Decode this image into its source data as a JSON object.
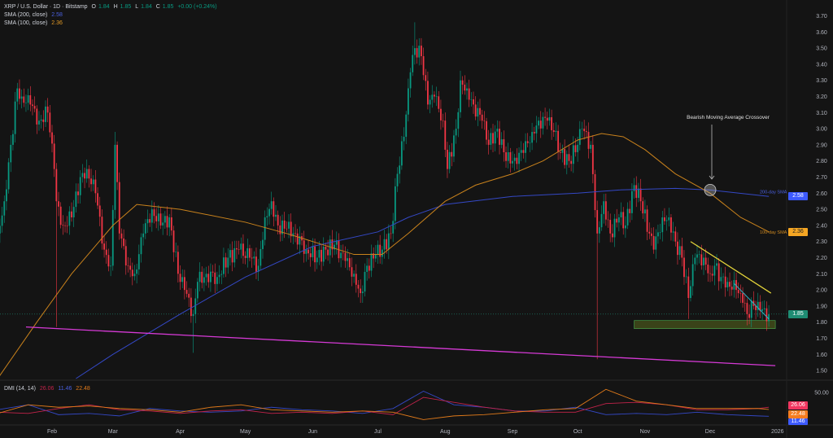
{
  "header": {
    "symbol": "XRP / U.S. Dollar · 1D · Bitstamp",
    "o_label": "O",
    "o": "1.84",
    "h_label": "H",
    "h": "1.85",
    "l_label": "L",
    "l": "1.84",
    "c_label": "C",
    "c": "1.85",
    "change": "+0.00 (+0.24%)",
    "sma200_label": "SMA (200, close)",
    "sma200_value": "2.58",
    "sma100_label": "SMA (100, close)",
    "sma100_value": "2.36"
  },
  "dmi_legend": {
    "label": "DMI (14, 14)",
    "minus_di": "26.06",
    "plus_di": "11.46",
    "adx": "22.48"
  },
  "price_tags": {
    "sma200": "2.58",
    "sma100": "2.36",
    "last": "1.85"
  },
  "dmi_tags": {
    "minus_di": "26.06",
    "adx": "22.48",
    "plus_di": "11.46"
  },
  "colors": {
    "up": "#089981",
    "down": "#f23645",
    "sma200": "#3448c5",
    "sma100": "#c9821c",
    "support_line": "#d63ad6",
    "upper_trend": "#e5d53a",
    "lower_trend": "#31b6c9",
    "support_zone": "#5a6a1e",
    "plus_di": "#3448c5",
    "minus_di": "#c2234a",
    "adx": "#e07a1a"
  },
  "chart_data": [
    {
      "type": "candlestick",
      "title": "XRP / U.S. Dollar · 1D · Bitstamp",
      "y_scale": "linear",
      "ylim": [
        1.45,
        3.72
      ],
      "y_ticks": [
        "3.70",
        "3.60",
        "3.50",
        "3.40",
        "3.30",
        "3.20",
        "3.10",
        "3.00",
        "2.90",
        "2.80",
        "2.70",
        "2.60",
        "2.50",
        "2.40",
        "2.30",
        "2.20",
        "2.10",
        "2.00",
        "1.90",
        "1.80",
        "1.70",
        "1.60",
        "1.50"
      ],
      "x_ticks": [
        [
          "2025-02-01",
          "Feb"
        ],
        [
          "2025-03-01",
          "Mar"
        ],
        [
          "2025-04-01",
          "Apr"
        ],
        [
          "2025-05-01",
          "May"
        ],
        [
          "2025-06-01",
          "Jun"
        ],
        [
          "2025-07-01",
          "Jul"
        ],
        [
          "2025-08-01",
          "Aug"
        ],
        [
          "2025-09-01",
          "Sep"
        ],
        [
          "2025-10-01",
          "Oct"
        ],
        [
          "2025-11-01",
          "Nov"
        ],
        [
          "2025-12-01",
          "Dec"
        ],
        [
          "2026-01-01",
          "2026"
        ]
      ],
      "closes": [
        [
          "2025-01-07",
          2.35
        ],
        [
          "2025-01-10",
          2.55
        ],
        [
          "2025-01-13",
          2.9
        ],
        [
          "2025-01-16",
          3.25
        ],
        [
          "2025-01-18",
          3.2
        ],
        [
          "2025-01-22",
          3.15
        ],
        [
          "2025-01-26",
          3.05
        ],
        [
          "2025-01-30",
          3.1
        ],
        [
          "2025-02-02",
          2.75
        ],
        [
          "2025-02-03",
          2.55
        ],
        [
          "2025-02-06",
          2.4
        ],
        [
          "2025-02-10",
          2.45
        ],
        [
          "2025-02-14",
          2.7
        ],
        [
          "2025-02-17",
          2.75
        ],
        [
          "2025-02-21",
          2.6
        ],
        [
          "2025-02-25",
          2.25
        ],
        [
          "2025-02-28",
          2.15
        ],
        [
          "2025-03-02",
          2.9
        ],
        [
          "2025-03-04",
          2.35
        ],
        [
          "2025-03-08",
          2.15
        ],
        [
          "2025-03-11",
          2.1
        ],
        [
          "2025-03-15",
          2.35
        ],
        [
          "2025-03-19",
          2.5
        ],
        [
          "2025-03-23",
          2.4
        ],
        [
          "2025-03-27",
          2.45
        ],
        [
          "2025-03-31",
          2.1
        ],
        [
          "2025-04-03",
          2.0
        ],
        [
          "2025-04-07",
          1.85
        ],
        [
          "2025-04-09",
          2.05
        ],
        [
          "2025-04-13",
          2.1
        ],
        [
          "2025-04-18",
          2.08
        ],
        [
          "2025-04-23",
          2.2
        ],
        [
          "2025-04-28",
          2.25
        ],
        [
          "2025-05-03",
          2.2
        ],
        [
          "2025-05-07",
          2.15
        ],
        [
          "2025-05-10",
          2.45
        ],
        [
          "2025-05-13",
          2.55
        ],
        [
          "2025-05-16",
          2.4
        ],
        [
          "2025-05-20",
          2.38
        ],
        [
          "2025-05-24",
          2.35
        ],
        [
          "2025-05-29",
          2.25
        ],
        [
          "2025-06-03",
          2.2
        ],
        [
          "2025-06-07",
          2.25
        ],
        [
          "2025-06-11",
          2.28
        ],
        [
          "2025-06-16",
          2.18
        ],
        [
          "2025-06-20",
          2.1
        ],
        [
          "2025-06-23",
          1.98
        ],
        [
          "2025-06-26",
          2.15
        ],
        [
          "2025-06-30",
          2.22
        ],
        [
          "2025-07-03",
          2.25
        ],
        [
          "2025-07-07",
          2.35
        ],
        [
          "2025-07-10",
          2.72
        ],
        [
          "2025-07-13",
          2.95
        ],
        [
          "2025-07-16",
          3.35
        ],
        [
          "2025-07-18",
          3.5
        ],
        [
          "2025-07-21",
          3.45
        ],
        [
          "2025-07-24",
          3.15
        ],
        [
          "2025-07-27",
          3.2
        ],
        [
          "2025-07-31",
          3.05
        ],
        [
          "2025-08-02",
          2.75
        ],
        [
          "2025-08-06",
          3.0
        ],
        [
          "2025-08-08",
          3.3
        ],
        [
          "2025-08-11",
          3.25
        ],
        [
          "2025-08-14",
          3.15
        ],
        [
          "2025-08-18",
          3.05
        ],
        [
          "2025-08-21",
          2.9
        ],
        [
          "2025-08-25",
          3.0
        ],
        [
          "2025-08-29",
          2.8
        ],
        [
          "2025-09-02",
          2.82
        ],
        [
          "2025-09-06",
          2.85
        ],
        [
          "2025-09-10",
          2.98
        ],
        [
          "2025-09-13",
          3.05
        ],
        [
          "2025-09-17",
          3.05
        ],
        [
          "2025-09-20",
          2.98
        ],
        [
          "2025-09-23",
          2.85
        ],
        [
          "2025-09-27",
          2.8
        ],
        [
          "2025-10-01",
          2.9
        ],
        [
          "2025-10-03",
          3.0
        ],
        [
          "2025-10-07",
          2.9
        ],
        [
          "2025-10-10",
          2.35
        ],
        [
          "2025-10-13",
          2.55
        ],
        [
          "2025-10-16",
          2.35
        ],
        [
          "2025-10-20",
          2.45
        ],
        [
          "2025-10-23",
          2.4
        ],
        [
          "2025-10-27",
          2.65
        ],
        [
          "2025-10-30",
          2.55
        ],
        [
          "2025-11-03",
          2.35
        ],
        [
          "2025-11-05",
          2.25
        ],
        [
          "2025-11-09",
          2.45
        ],
        [
          "2025-11-12",
          2.45
        ],
        [
          "2025-11-15",
          2.3
        ],
        [
          "2025-11-18",
          2.2
        ],
        [
          "2025-11-21",
          1.95
        ],
        [
          "2025-11-24",
          2.2
        ],
        [
          "2025-11-28",
          2.2
        ],
        [
          "2025-12-01",
          2.1
        ],
        [
          "2025-12-03",
          2.15
        ],
        [
          "2025-12-06",
          2.08
        ],
        [
          "2025-12-09",
          2.05
        ],
        [
          "2025-12-13",
          2.0
        ],
        [
          "2025-12-16",
          1.92
        ],
        [
          "2025-12-18",
          1.85
        ],
        [
          "2025-12-21",
          1.9
        ],
        [
          "2025-12-24",
          1.87
        ],
        [
          "2025-12-28",
          1.85
        ]
      ],
      "wick_extremes": [
        {
          "date": "2025-02-03",
          "low": 1.77
        },
        {
          "date": "2025-03-02",
          "high": 2.98
        },
        {
          "date": "2025-04-07",
          "low": 1.61
        },
        {
          "date": "2025-06-23",
          "low": 1.92
        },
        {
          "date": "2025-07-18",
          "high": 3.66
        },
        {
          "date": "2025-10-10",
          "low": 1.57
        },
        {
          "date": "2025-11-21",
          "low": 1.82
        },
        {
          "date": "2025-12-18",
          "low": 1.78
        }
      ],
      "series": [
        {
          "name": "200-day SMA",
          "points": [
            [
              "2025-02-12",
              1.45
            ],
            [
              "2025-03-01",
              1.6
            ],
            [
              "2025-04-01",
              1.85
            ],
            [
              "2025-05-01",
              2.08
            ],
            [
              "2025-06-01",
              2.27
            ],
            [
              "2025-07-01",
              2.36
            ],
            [
              "2025-07-15",
              2.45
            ],
            [
              "2025-08-01",
              2.53
            ],
            [
              "2025-09-01",
              2.58
            ],
            [
              "2025-10-01",
              2.6
            ],
            [
              "2025-10-20",
              2.62
            ],
            [
              "2025-11-15",
              2.63
            ],
            [
              "2025-12-01",
              2.62
            ],
            [
              "2025-12-28",
              2.58
            ]
          ]
        },
        {
          "name": "100-day SMA",
          "points": [
            [
              "2025-01-07",
              1.45
            ],
            [
              "2025-01-25",
              1.8
            ],
            [
              "2025-02-10",
              2.1
            ],
            [
              "2025-03-01",
              2.4
            ],
            [
              "2025-03-12",
              2.53
            ],
            [
              "2025-04-01",
              2.5
            ],
            [
              "2025-05-01",
              2.42
            ],
            [
              "2025-05-20",
              2.35
            ],
            [
              "2025-06-01",
              2.3
            ],
            [
              "2025-06-20",
              2.22
            ],
            [
              "2025-07-03",
              2.22
            ],
            [
              "2025-07-15",
              2.35
            ],
            [
              "2025-08-01",
              2.55
            ],
            [
              "2025-08-15",
              2.65
            ],
            [
              "2025-09-01",
              2.72
            ],
            [
              "2025-09-15",
              2.8
            ],
            [
              "2025-10-01",
              2.93
            ],
            [
              "2025-10-12",
              2.97
            ],
            [
              "2025-10-22",
              2.95
            ],
            [
              "2025-11-01",
              2.87
            ],
            [
              "2025-11-15",
              2.72
            ],
            [
              "2025-12-01",
              2.6
            ],
            [
              "2025-12-15",
              2.45
            ],
            [
              "2025-12-28",
              2.36
            ]
          ]
        }
      ],
      "trendlines": {
        "support": [
          [
            "2025-01-20",
            1.77
          ],
          [
            "2025-12-31",
            1.53
          ]
        ],
        "upper_resistance": [
          [
            "2025-11-22",
            2.3
          ],
          [
            "2025-12-29",
            1.98
          ]
        ],
        "lower_resistance": [
          [
            "2025-12-12",
            2.04
          ],
          [
            "2025-12-28",
            1.82
          ]
        ],
        "support_zone": {
          "from": "2025-10-27",
          "to": "2025-12-31",
          "high": 1.81,
          "low": 1.76
        },
        "last_price_line": 1.85
      },
      "series_labels": {
        "sma200": "200-day SMA",
        "sma100": "100-day SMA"
      },
      "annotation": {
        "text": "Bearish Moving Average Crossover",
        "date": "2025-12-01",
        "price": 2.62
      }
    },
    {
      "type": "line",
      "title": "DMI (14, 14)",
      "y_ticks": [
        "50.00"
      ],
      "dates": [
        "2025-01-07",
        "2025-01-21",
        "2025-02-04",
        "2025-02-18",
        "2025-03-04",
        "2025-03-18",
        "2025-04-01",
        "2025-04-15",
        "2025-04-29",
        "2025-05-13",
        "2025-05-27",
        "2025-06-10",
        "2025-06-24",
        "2025-07-08",
        "2025-07-22",
        "2025-08-05",
        "2025-08-19",
        "2025-09-02",
        "2025-09-16",
        "2025-09-30",
        "2025-10-14",
        "2025-10-28",
        "2025-11-11",
        "2025-11-25",
        "2025-12-09",
        "2025-12-23",
        "2025-12-28"
      ],
      "series": [
        {
          "name": "+DI",
          "values": [
            22,
            30,
            14,
            16,
            12,
            24,
            20,
            18,
            20,
            26,
            22,
            20,
            16,
            24,
            52,
            30,
            26,
            20,
            20,
            26,
            14,
            16,
            14,
            18,
            14,
            12,
            11.46
          ]
        },
        {
          "name": "-DI",
          "values": [
            18,
            16,
            24,
            30,
            22,
            20,
            16,
            20,
            22,
            16,
            18,
            16,
            20,
            14,
            42,
            34,
            26,
            20,
            18,
            18,
            32,
            34,
            30,
            22,
            22,
            24,
            26.06
          ]
        },
        {
          "name": "ADX",
          "values": [
            16,
            30,
            26,
            28,
            24,
            22,
            18,
            26,
            30,
            22,
            20,
            18,
            20,
            18,
            6,
            12,
            14,
            18,
            22,
            24,
            55,
            36,
            30,
            24,
            24,
            24,
            22.48
          ]
        }
      ]
    }
  ]
}
